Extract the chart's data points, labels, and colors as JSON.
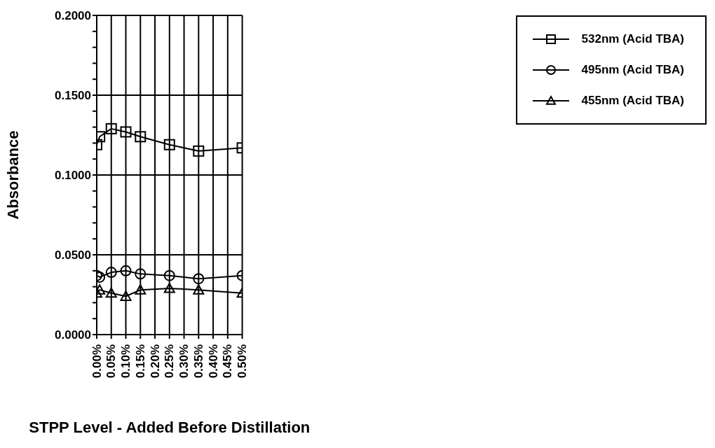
{
  "chart_data": {
    "type": "line",
    "xlabel": "STPP Level - Added Before Distillation",
    "ylabel": "Absorbance",
    "x": [
      0,
      0.01,
      0.05,
      0.1,
      0.15,
      0.25,
      0.35,
      0.5
    ],
    "series": [
      {
        "name": "532nm (Acid TBA)",
        "color": "#000000",
        "marker": "square",
        "values": [
          0.119,
          0.124,
          0.129,
          0.127,
          0.124,
          0.119,
          0.115,
          0.117
        ]
      },
      {
        "name": "495nm (Acid TBA)",
        "color": "#000000",
        "marker": "circle",
        "values": [
          0.037,
          0.036,
          0.039,
          0.04,
          0.038,
          0.037,
          0.035,
          0.037
        ]
      },
      {
        "name": "455nm (Acid TBA)",
        "color": "#000000",
        "marker": "triangle",
        "values": [
          0.026,
          0.028,
          0.026,
          0.024,
          0.028,
          0.029,
          0.028,
          0.026
        ]
      }
    ],
    "xlim": [
      0,
      0.5
    ],
    "xticks": [
      {
        "value": 0,
        "label": "0.00%"
      },
      {
        "value": 0.05,
        "label": "0.05%"
      },
      {
        "value": 0.1,
        "label": "0.10%"
      },
      {
        "value": 0.15,
        "label": "0.15%"
      },
      {
        "value": 0.2,
        "label": "0.20%"
      },
      {
        "value": 0.25,
        "label": "0.25%"
      },
      {
        "value": 0.3,
        "label": "0.30%"
      },
      {
        "value": 0.35,
        "label": "0.35%"
      },
      {
        "value": 0.4,
        "label": "0.40%"
      },
      {
        "value": 0.45,
        "label": "0.45%"
      },
      {
        "value": 0.5,
        "label": "0.50%"
      }
    ],
    "ylim": [
      0,
      0.2
    ],
    "yticks": [
      {
        "value": 0,
        "label": "0.0000"
      },
      {
        "value": 0.01,
        "label": null
      },
      {
        "value": 0.02,
        "label": null
      },
      {
        "value": 0.03,
        "label": null
      },
      {
        "value": 0.04,
        "label": null
      },
      {
        "value": 0.05,
        "label": "0.0500"
      },
      {
        "value": 0.06,
        "label": null
      },
      {
        "value": 0.07,
        "label": null
      },
      {
        "value": 0.08,
        "label": null
      },
      {
        "value": 0.09,
        "label": null
      },
      {
        "value": 0.1,
        "label": "0.1000"
      },
      {
        "value": 0.11,
        "label": null
      },
      {
        "value": 0.12,
        "label": null
      },
      {
        "value": 0.13,
        "label": null
      },
      {
        "value": 0.14,
        "label": null
      },
      {
        "value": 0.15,
        "label": "0.1500"
      },
      {
        "value": 0.16,
        "label": null
      },
      {
        "value": 0.17,
        "label": null
      },
      {
        "value": 0.18,
        "label": null
      },
      {
        "value": 0.19,
        "label": null
      },
      {
        "value": 0.2,
        "label": "0.2000"
      }
    ],
    "grid": true,
    "legend": "top right",
    "line_style": "solid"
  }
}
